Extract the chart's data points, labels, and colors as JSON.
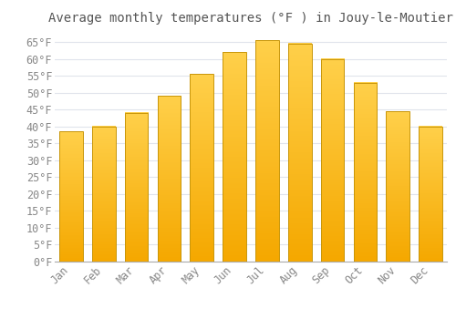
{
  "title": "Average monthly temperatures (°F ) in Jouy-le-Moutier",
  "months": [
    "Jan",
    "Feb",
    "Mar",
    "Apr",
    "May",
    "Jun",
    "Jul",
    "Aug",
    "Sep",
    "Oct",
    "Nov",
    "Dec"
  ],
  "values": [
    38.5,
    40.0,
    44.0,
    49.0,
    55.5,
    62.0,
    65.5,
    64.5,
    60.0,
    53.0,
    44.5,
    40.0
  ],
  "bar_color_top": "#FFD04A",
  "bar_color_bottom": "#F5A800",
  "bar_edge_color": "#C8960A",
  "background_color": "#FFFFFF",
  "plot_bg_color": "#FFFFFF",
  "grid_color": "#E0E4EC",
  "text_color": "#888888",
  "title_color": "#555555",
  "ylim": [
    0,
    68
  ],
  "yticks": [
    0,
    5,
    10,
    15,
    20,
    25,
    30,
    35,
    40,
    45,
    50,
    55,
    60,
    65
  ],
  "title_fontsize": 10,
  "tick_fontsize": 8.5,
  "bar_width": 0.72
}
